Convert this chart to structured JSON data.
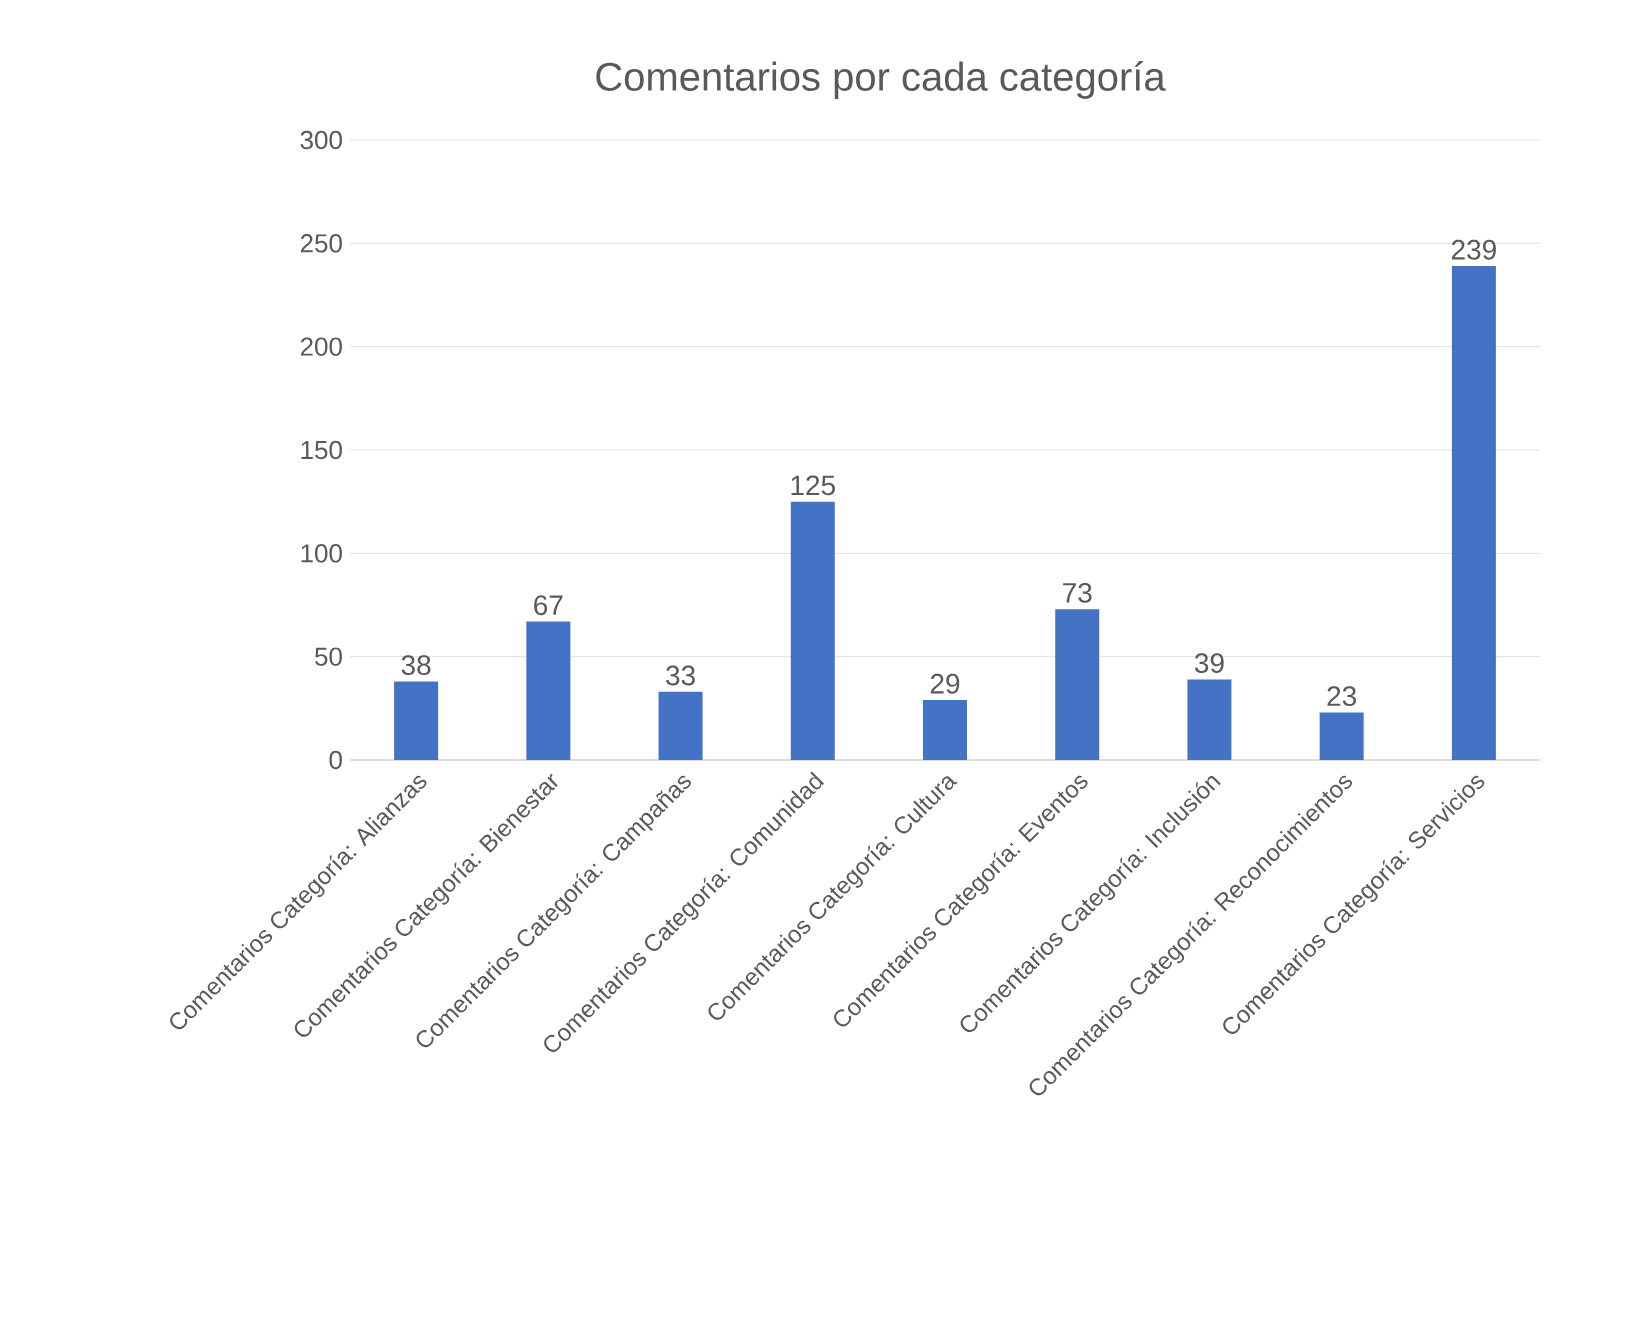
{
  "chart_data": {
    "type": "bar",
    "title": "Comentarios por cada categoría",
    "categories": [
      "Comentarios Categoría: Alianzas",
      "Comentarios Categoría: Bienestar",
      "Comentarios Categoría: Campañas",
      "Comentarios Categoría: Comunidad",
      "Comentarios Categoría: Cultura",
      "Comentarios Categoría: Eventos",
      "Comentarios Categoría: Inclusión",
      "Comentarios Categoría: Reconocimientos",
      "Comentarios Categoría: Servicios"
    ],
    "values": [
      38,
      67,
      33,
      125,
      29,
      73,
      39,
      23,
      239
    ],
    "color": "#4472c4",
    "ylim": [
      0,
      300
    ],
    "yticks": [
      0,
      50,
      100,
      150,
      200,
      250,
      300
    ],
    "grid": "y",
    "data_labels": true
  }
}
